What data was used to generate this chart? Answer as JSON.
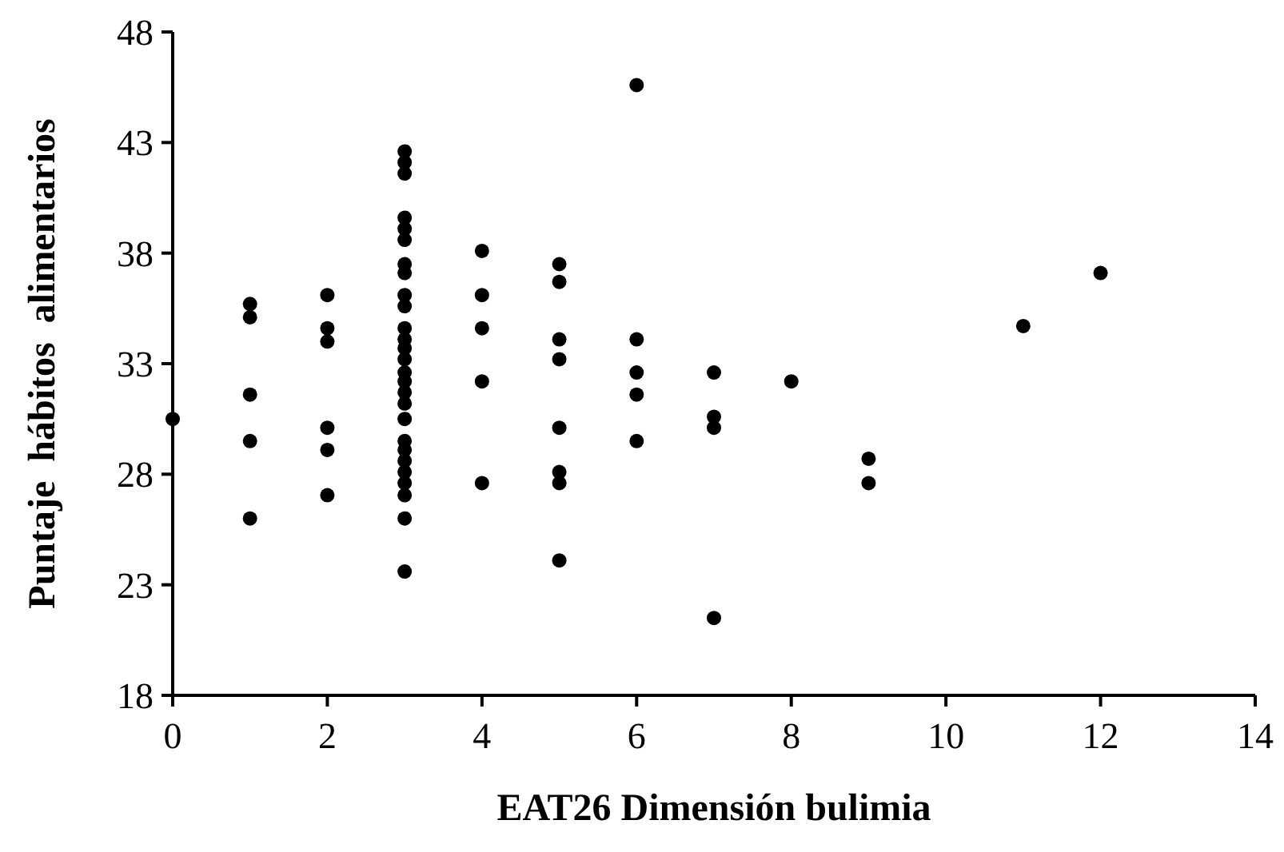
{
  "chart_data": {
    "type": "scatter",
    "xlabel": "EAT26 Dimensión bulimia",
    "ylabel": "Puntaje  hábitos  alimentarios",
    "xlim": [
      0,
      14
    ],
    "ylim": [
      18,
      48
    ],
    "xticks": [
      0,
      2,
      4,
      6,
      8,
      10,
      12,
      14
    ],
    "yticks": [
      18,
      23,
      28,
      33,
      38,
      43,
      48
    ],
    "grid": false,
    "marker": "circle",
    "series": [
      {
        "color": "#000000",
        "x": [
          0,
          1,
          1,
          1,
          1,
          1,
          2,
          2,
          2,
          2,
          2,
          2,
          3,
          3,
          3,
          3,
          3,
          3,
          3,
          3,
          3,
          3,
          3,
          3,
          3,
          3,
          3,
          3,
          3,
          3,
          3,
          3,
          3,
          3,
          3,
          3,
          3,
          3,
          3,
          4,
          4,
          4,
          4,
          4,
          5,
          5,
          5,
          5,
          5,
          5,
          5,
          5,
          6,
          6,
          6,
          6,
          6,
          7,
          7,
          7,
          7,
          8,
          9,
          9,
          11,
          12
        ],
        "values": [
          30.5,
          35.7,
          35.1,
          31.6,
          29.5,
          26.0,
          36.1,
          34.6,
          34.0,
          30.1,
          29.1,
          27.05,
          42.6,
          42.1,
          41.6,
          39.6,
          39.1,
          38.6,
          37.5,
          37.1,
          36.1,
          35.6,
          34.6,
          34.1,
          33.7,
          33.2,
          32.6,
          32.2,
          31.7,
          31.2,
          30.5,
          29.5,
          29.1,
          28.6,
          28.1,
          27.6,
          27.05,
          26.0,
          23.6,
          38.1,
          36.1,
          34.6,
          32.2,
          27.6,
          37.5,
          36.7,
          34.1,
          33.2,
          30.1,
          28.1,
          27.6,
          24.1,
          45.6,
          34.1,
          32.6,
          31.6,
          29.5,
          32.6,
          30.6,
          30.1,
          21.5,
          32.2,
          28.7,
          27.6,
          34.7,
          37.1
        ]
      }
    ]
  }
}
